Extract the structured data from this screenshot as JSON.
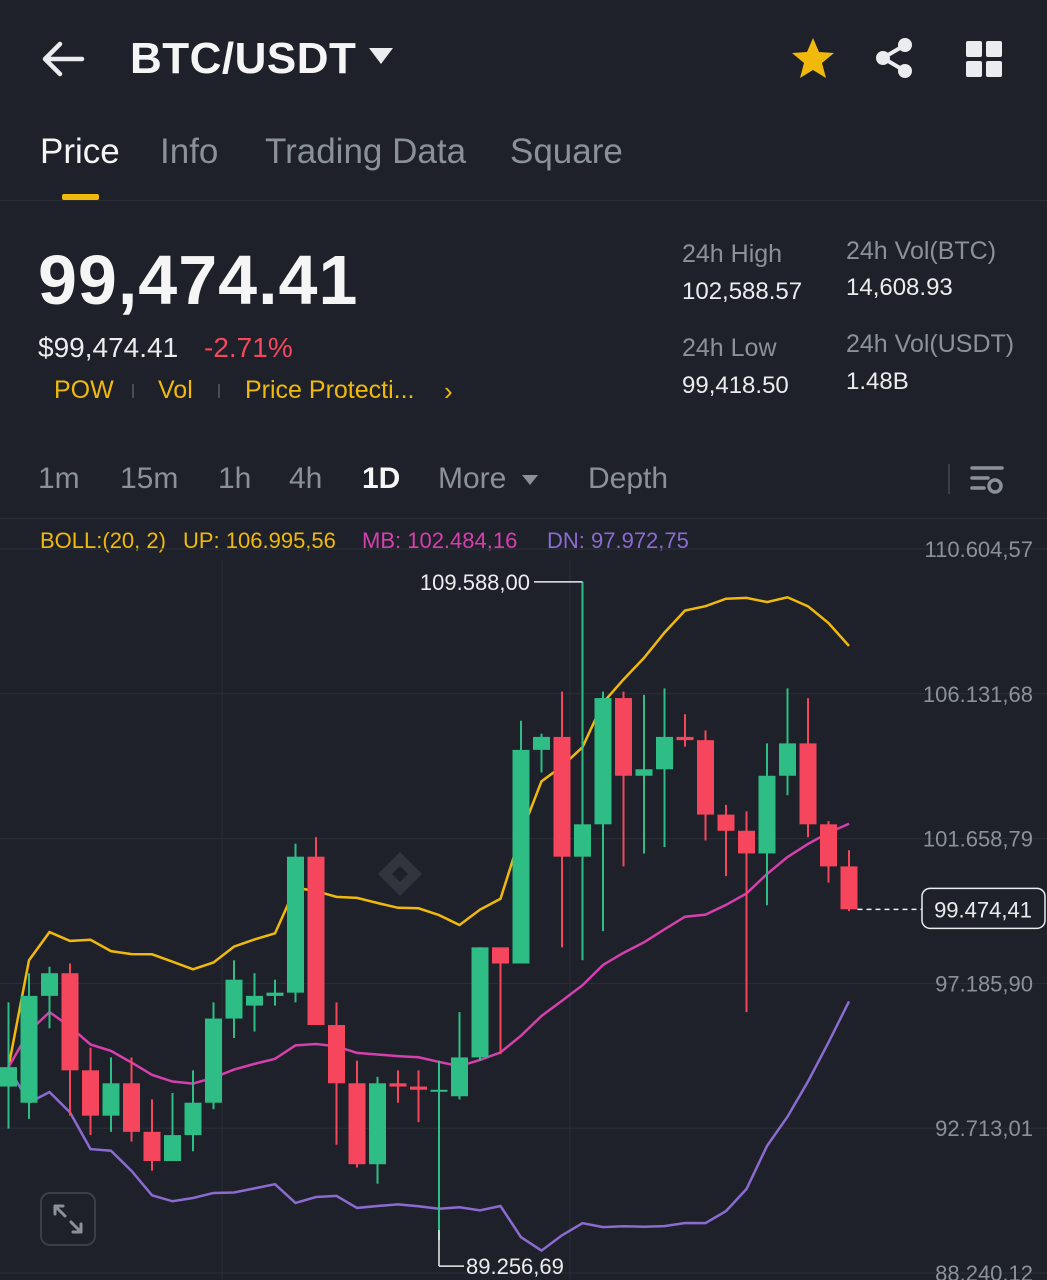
{
  "header": {
    "title": "BTC/USDT",
    "icons": [
      "back-arrow-icon",
      "caret-down-icon",
      "star-icon",
      "share-icon",
      "grid-icon"
    ]
  },
  "tabs": [
    {
      "label": "Price",
      "active": true
    },
    {
      "label": "Info"
    },
    {
      "label": "Trading Data"
    },
    {
      "label": "Square"
    }
  ],
  "price": {
    "last": "99,474.41",
    "usd": "$99,474.41",
    "change": "-2.71%",
    "tags": [
      "POW",
      "Vol",
      "Price Protecti..."
    ]
  },
  "stats": {
    "high_label": "24h High",
    "high_value": "102,588.57",
    "low_label": "24h Low",
    "low_value": "99,418.50",
    "vol_btc_label": "24h Vol(BTC)",
    "vol_btc_value": "14,608.93",
    "vol_usdt_label": "24h Vol(USDT)",
    "vol_usdt_value": "1.48B"
  },
  "intervals": [
    {
      "label": "1m"
    },
    {
      "label": "15m"
    },
    {
      "label": "1h"
    },
    {
      "label": "4h"
    },
    {
      "label": "1D",
      "active": true
    },
    {
      "label": "More"
    },
    {
      "label": "Depth"
    }
  ],
  "boll": {
    "label": "BOLL:(20, 2)",
    "up": "UP: 106.995,56",
    "mb": "MB: 102.484,16",
    "dn": "DN: 97.972,75"
  },
  "colors": {
    "up": "#2ebd85",
    "down": "#f6465d",
    "accent": "#f0b90b",
    "boll_up": "#f0b90b",
    "boll_mb": "#d63fae",
    "boll_dn": "#8c6bd1"
  },
  "chart_data": {
    "type": "candlestick",
    "ylim": [
      88240.12,
      110604.57
    ],
    "y_ticks": [
      "110.604,57",
      "106.131,68",
      "101.658,79",
      "97.185,90",
      "92.713,01",
      "88.240,12"
    ],
    "y_tick_values": [
      110604.57,
      106131.68,
      101658.79,
      97185.9,
      92713.01,
      88240.12
    ],
    "max_label": "109.588,00",
    "max_value": 109588.0,
    "min_label": "89.256,69",
    "min_value": 89256.69,
    "last_label": "99.474,41",
    "last_value": 99474.41,
    "candles": [
      {
        "o": 94000,
        "h": 96600,
        "l": 92700,
        "c": 94600
      },
      {
        "o": 93500,
        "h": 97500,
        "l": 93000,
        "c": 96800
      },
      {
        "o": 96800,
        "h": 97700,
        "l": 95800,
        "c": 97500
      },
      {
        "o": 97500,
        "h": 97800,
        "l": 93100,
        "c": 94500
      },
      {
        "o": 94500,
        "h": 95200,
        "l": 92500,
        "c": 93100
      },
      {
        "o": 93100,
        "h": 94900,
        "l": 92600,
        "c": 94100
      },
      {
        "o": 94100,
        "h": 94900,
        "l": 92300,
        "c": 92600
      },
      {
        "o": 92600,
        "h": 93600,
        "l": 91400,
        "c": 91700
      },
      {
        "o": 91700,
        "h": 93800,
        "l": 91900,
        "c": 92500
      },
      {
        "o": 92500,
        "h": 94500,
        "l": 92000,
        "c": 93500
      },
      {
        "o": 93500,
        "h": 96600,
        "l": 93300,
        "c": 96100
      },
      {
        "o": 96100,
        "h": 97900,
        "l": 95500,
        "c": 97300
      },
      {
        "o": 96500,
        "h": 97500,
        "l": 95700,
        "c": 96800
      },
      {
        "o": 96800,
        "h": 97300,
        "l": 96500,
        "c": 96900
      },
      {
        "o": 96900,
        "h": 101500,
        "l": 96600,
        "c": 101100
      },
      {
        "o": 101100,
        "h": 101700,
        "l": 96000,
        "c": 95900
      },
      {
        "o": 95900,
        "h": 96600,
        "l": 92200,
        "c": 94100
      },
      {
        "o": 94100,
        "h": 94800,
        "l": 91500,
        "c": 91600
      },
      {
        "o": 91600,
        "h": 94300,
        "l": 91000,
        "c": 94100
      },
      {
        "o": 94100,
        "h": 94500,
        "l": 93500,
        "c": 94000
      },
      {
        "o": 94000,
        "h": 94500,
        "l": 92900,
        "c": 93900
      },
      {
        "o": 93900,
        "h": 94800,
        "l": 89256.69,
        "c": 93900
      },
      {
        "o": 93700,
        "h": 96300,
        "l": 93600,
        "c": 94900
      },
      {
        "o": 94900,
        "h": 98300,
        "l": 94800,
        "c": 98300
      },
      {
        "o": 98300,
        "h": 98100,
        "l": 95000,
        "c": 97800
      },
      {
        "o": 97800,
        "h": 105300,
        "l": 97800,
        "c": 104400
      },
      {
        "o": 104400,
        "h": 104900,
        "l": 103700,
        "c": 104800
      },
      {
        "o": 104800,
        "h": 106200,
        "l": 98300,
        "c": 101100
      },
      {
        "o": 101100,
        "h": 109588.0,
        "l": 97900,
        "c": 102100
      },
      {
        "o": 102100,
        "h": 106200,
        "l": 98800,
        "c": 106000
      },
      {
        "o": 106000,
        "h": 106200,
        "l": 100800,
        "c": 103600
      },
      {
        "o": 103600,
        "h": 106100,
        "l": 101200,
        "c": 103800
      },
      {
        "o": 103800,
        "h": 106300,
        "l": 101400,
        "c": 104800
      },
      {
        "o": 104800,
        "h": 105500,
        "l": 104500,
        "c": 104700
      },
      {
        "o": 104700,
        "h": 105000,
        "l": 101600,
        "c": 102400
      },
      {
        "o": 102400,
        "h": 102700,
        "l": 100500,
        "c": 101900
      },
      {
        "o": 101900,
        "h": 102500,
        "l": 96300,
        "c": 101200
      },
      {
        "o": 101200,
        "h": 104600,
        "l": 99600,
        "c": 103600
      },
      {
        "o": 103600,
        "h": 106300,
        "l": 103000,
        "c": 104600
      },
      {
        "o": 104600,
        "h": 106000,
        "l": 101700,
        "c": 102100
      },
      {
        "o": 102100,
        "h": 102200,
        "l": 100300,
        "c": 100800
      },
      {
        "o": 100800,
        "h": 101300,
        "l": 99418.5,
        "c": 99474.41
      }
    ]
  }
}
